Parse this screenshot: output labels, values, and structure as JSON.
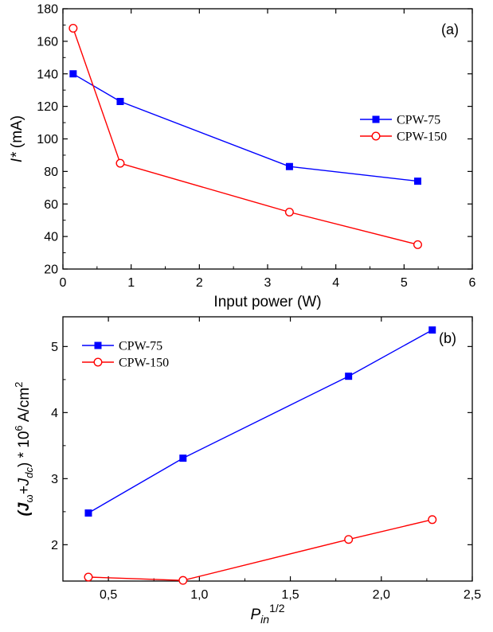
{
  "chart_data": [
    {
      "type": "line",
      "panel_label": "(a)",
      "xlabel": "Input power (W)",
      "ylabel_italic": "I*",
      "ylabel_rest": " (mA)",
      "xlim": [
        0,
        6
      ],
      "ylim": [
        20,
        180
      ],
      "xticks": [
        0,
        1,
        2,
        3,
        4,
        5,
        6
      ],
      "xtick_labels": [
        "0",
        "1",
        "2",
        "3",
        "4",
        "5",
        "6"
      ],
      "yticks": [
        20,
        40,
        60,
        80,
        100,
        120,
        140,
        160,
        180
      ],
      "ytick_labels": [
        "20",
        "40",
        "60",
        "80",
        "100",
        "120",
        "140",
        "160",
        "180"
      ],
      "legend_position": "right",
      "series": [
        {
          "name": "CPW-75",
          "color": "#0000ff",
          "marker": "filled-square",
          "x": [
            0.15,
            0.84,
            3.32,
            5.2
          ],
          "y": [
            140,
            123,
            83,
            74
          ]
        },
        {
          "name": "CPW-150",
          "color": "#ff0000",
          "marker": "open-circle",
          "x": [
            0.15,
            0.84,
            3.32,
            5.2
          ],
          "y": [
            168,
            85,
            55,
            35
          ]
        }
      ]
    },
    {
      "type": "line",
      "panel_label": "(b)",
      "xlabel_main": "P",
      "xlabel_sub": "in",
      "xlabel_sup": "1/2",
      "ylabel_parts": [
        "(J",
        "ω",
        "+J",
        "dc",
        ") * 10",
        "6",
        " A/cm",
        "2"
      ],
      "xlim": [
        0.25,
        2.5
      ],
      "ylim": [
        1.45,
        5.45
      ],
      "xticks": [
        0.5,
        1.0,
        1.5,
        2.0,
        2.5
      ],
      "xtick_labels": [
        "0,5",
        "1,0",
        "1,5",
        "2,0",
        "2,5"
      ],
      "yticks": [
        2,
        3,
        4,
        5
      ],
      "ytick_labels": [
        "2",
        "3",
        "4",
        "5"
      ],
      "legend_position": "top-left",
      "series": [
        {
          "name": "CPW-75",
          "color": "#0000ff",
          "marker": "filled-square",
          "x": [
            0.39,
            0.91,
            1.82,
            2.28
          ],
          "y": [
            2.48,
            3.31,
            4.55,
            5.25
          ]
        },
        {
          "name": "CPW-150",
          "color": "#ff0000",
          "marker": "open-circle",
          "x": [
            0.39,
            0.91,
            1.82,
            2.28
          ],
          "y": [
            1.51,
            1.46,
            2.08,
            2.38
          ]
        }
      ]
    }
  ]
}
